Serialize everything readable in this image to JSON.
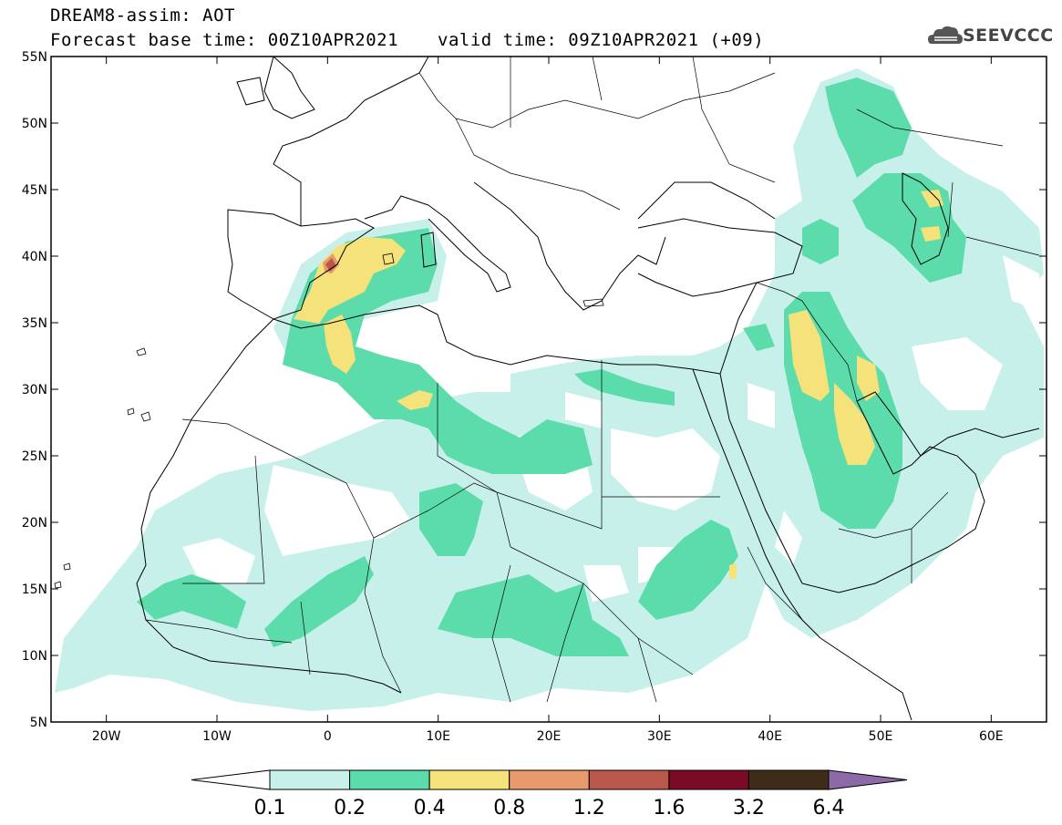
{
  "header": {
    "title": "DREAM8-assim: AOT",
    "base_time": "Forecast base time: 00Z10APR2021",
    "valid_time": "valid time: 09Z10APR2021 (+09)",
    "logo_text": "SEEVCCC"
  },
  "map": {
    "lon_range": [
      -25,
      65
    ],
    "lat_range": [
      5,
      55
    ],
    "lat_labels": [
      "55N",
      "50N",
      "45N",
      "40N",
      "35N",
      "30N",
      "25N",
      "20N",
      "15N",
      "10N",
      "5N"
    ],
    "lon_labels": [
      "20W",
      "10W",
      "0",
      "10E",
      "20E",
      "30E",
      "40E",
      "50E",
      "60E"
    ]
  },
  "colorbar": {
    "labels": [
      "0.1",
      "0.2",
      "0.4",
      "0.8",
      "1.2",
      "1.6",
      "3.2",
      "6.4"
    ],
    "colors": [
      "#ffffff",
      "#c8f0ea",
      "#5bdcaa",
      "#f5e27a",
      "#e89a6c",
      "#b9584a",
      "#7a0a26",
      "#3e2b18",
      "#8c6aa8"
    ]
  },
  "colors": {
    "low": "#c8f0ea",
    "moderate": "#5bdcaa",
    "high": "#f5e27a",
    "very_high": "#e89a6c",
    "extreme": "#b9584a"
  }
}
